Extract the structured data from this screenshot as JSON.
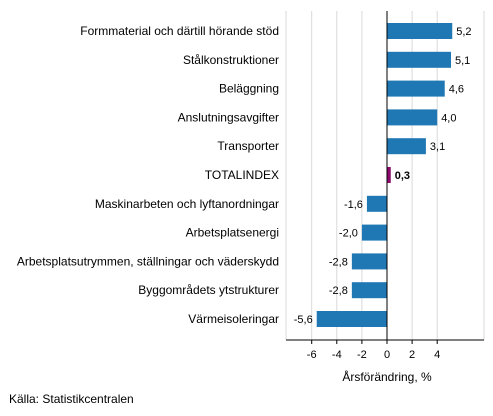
{
  "chart_data": {
    "type": "bar",
    "orientation": "horizontal",
    "categories": [
      "Formmaterial och därtill hörande stöd",
      "Stålkonstruktioner",
      "Beläggning",
      "Anslutningsavgifter",
      "Transporter",
      "TOTALINDEX",
      "Maskinarbeten och lyftanordningar",
      "Arbetsplatsenergi",
      "Arbetsplatsutrymmen, ställningar och väderskydd",
      "Byggområdets ytstrukturer",
      "Värmeisoleringar"
    ],
    "values": [
      5.2,
      5.1,
      4.6,
      4.0,
      3.1,
      0.3,
      -1.6,
      -2.0,
      -2.8,
      -2.8,
      -5.6
    ],
    "data_labels": [
      "5,2",
      "5,1",
      "4,6",
      "4,0",
      "3,1",
      "0,3",
      "-1,6",
      "-2,0",
      "-2,8",
      "-2,8",
      "-5,6"
    ],
    "highlight_index": 5,
    "xlabel": "Årsförändring, %",
    "xlim": [
      -8,
      7.2
    ],
    "xticks": [
      -6,
      -4,
      -2,
      0,
      2,
      4
    ],
    "xtick_labels": [
      "-6",
      "-4",
      "-2",
      "0",
      "2",
      "4"
    ],
    "grid": "vertical",
    "colors": {
      "bar": "#1f77b4",
      "highlight": "#8b0a6b",
      "grid": "#d9d9d9",
      "zero_line": "#000000"
    }
  },
  "source": "Källa: Statistikcentralen"
}
